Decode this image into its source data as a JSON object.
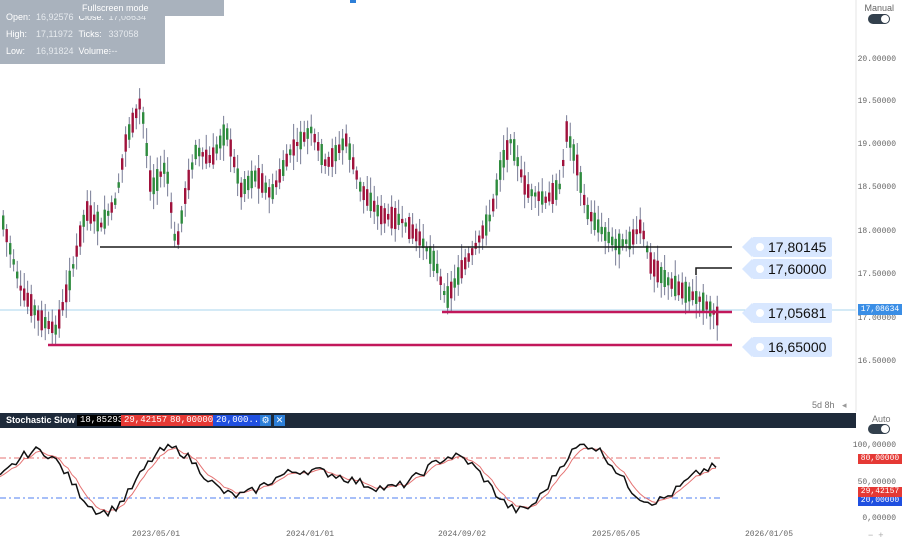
{
  "ohlc": {
    "open_label": "Open:",
    "open_value": "16,92576",
    "close_label": "Close:",
    "close_value": "17,08634",
    "high_label": "High:",
    "high_value": "17,11972",
    "ticks_label": "Ticks:",
    "ticks_value": "337058",
    "low_label": "Low:",
    "low_value": "16,91824",
    "volume_label": "Volume:",
    "volume_value": "---"
  },
  "tooltip": "Fullscreen mode",
  "manual_label": "Manual",
  "price_axis": [
    "20.00000",
    "19.50000",
    "19.00000",
    "18.50000",
    "18.00000",
    "17.50000",
    "17.00000",
    "16.50000"
  ],
  "current_price": "17,08634",
  "levels": [
    {
      "label": "17,80145",
      "color": "#1a1a1a"
    },
    {
      "label": "17,60000",
      "color": "#1a1a1a"
    },
    {
      "label": "17,05681",
      "color": "#c2185b"
    },
    {
      "label": "16,65000",
      "color": "#c2185b"
    }
  ],
  "timeframe": "5d 8h",
  "stochastic": {
    "name": "Stochastic Slow",
    "v1": "18,85293",
    "v2": "29,42157",
    "v3": "80,00000",
    "v4": "20,000...",
    "v2_color": "#e53935",
    "v3_color": "#e53935",
    "v4_color": "#1f4fe0"
  },
  "auto_label": "Auto",
  "stoch_axis": [
    "100,00000",
    "50,00000",
    "0,00000"
  ],
  "stoch_badges": [
    "80,00000",
    "29,42157",
    "20,00000"
  ],
  "x_dates": [
    "2023/05/01",
    "2024/01/01",
    "2024/09/02",
    "2025/05/05",
    "2026/01/05"
  ],
  "colors": {
    "bull": "#2e8b3e",
    "bear": "#a0123c",
    "wick": "#555a7a",
    "hline": "#a9d4ee",
    "k_line": "#111111",
    "d_line": "#e57373"
  }
}
